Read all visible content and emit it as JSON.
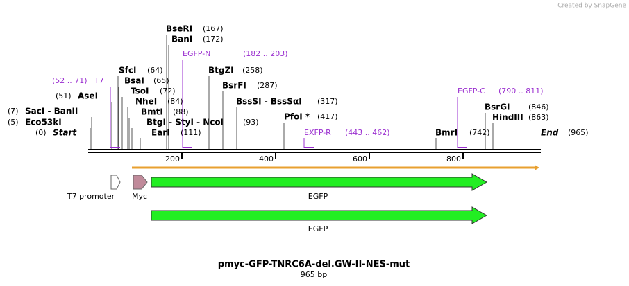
{
  "header": {
    "credit": "Created by SnapGene"
  },
  "sites": [
    {
      "name": "BseRI",
      "position": "(167)"
    },
    {
      "name": "BanI",
      "position": "(172)"
    },
    {
      "name": "SfcI",
      "position": "(64)"
    },
    {
      "name": "BsaI",
      "position": "(65)"
    },
    {
      "name": "TsoI",
      "position": "(72)"
    },
    {
      "name": "NheI",
      "position": "(84)"
    },
    {
      "name": "BmtI",
      "position": "(88)"
    },
    {
      "name": "BtgI - StyI - NcoI",
      "position": "(93)"
    },
    {
      "name": "EarI",
      "position": "(111)"
    },
    {
      "name": "AseI",
      "position": "(51)"
    },
    {
      "name": "SacI - BanII",
      "position": "(7)"
    },
    {
      "name": "Eco53kI",
      "position": "(5)"
    },
    {
      "name": "BtgZI",
      "position": "(258)"
    },
    {
      "name": "BsrFI",
      "position": "(287)"
    },
    {
      "name": "BssSI - BssSαI",
      "position": "(317)"
    },
    {
      "name": "PfoI *",
      "position": "(417)"
    },
    {
      "name": "BmrI",
      "position": "(742)"
    },
    {
      "name": "BsrGI",
      "position": "(846)"
    },
    {
      "name": "HindIII",
      "position": "(863)"
    }
  ],
  "primers": [
    {
      "name": "T7",
      "range": "(52 .. 71)"
    },
    {
      "name": "EGFP-N",
      "range": "(182 .. 203)"
    },
    {
      "name": "EXFP-R",
      "range": "(443 .. 462)"
    },
    {
      "name": "EGFP-C",
      "range": "(790 .. 811)"
    }
  ],
  "ends": {
    "start": "Start",
    "start_position": "(0)",
    "end": "End",
    "end_position": "(965)"
  },
  "ruler": {
    "ticks": [
      "200",
      "400",
      "600",
      "800"
    ]
  },
  "features": [
    {
      "label": "T7 promoter"
    },
    {
      "label": "Myc"
    },
    {
      "label": "EGFP"
    },
    {
      "label": "EGFP"
    }
  ],
  "footer": {
    "title": "pmyc-GFP-TNRC6A-del.GW-II-NES-mut",
    "length": "965 bp"
  }
}
